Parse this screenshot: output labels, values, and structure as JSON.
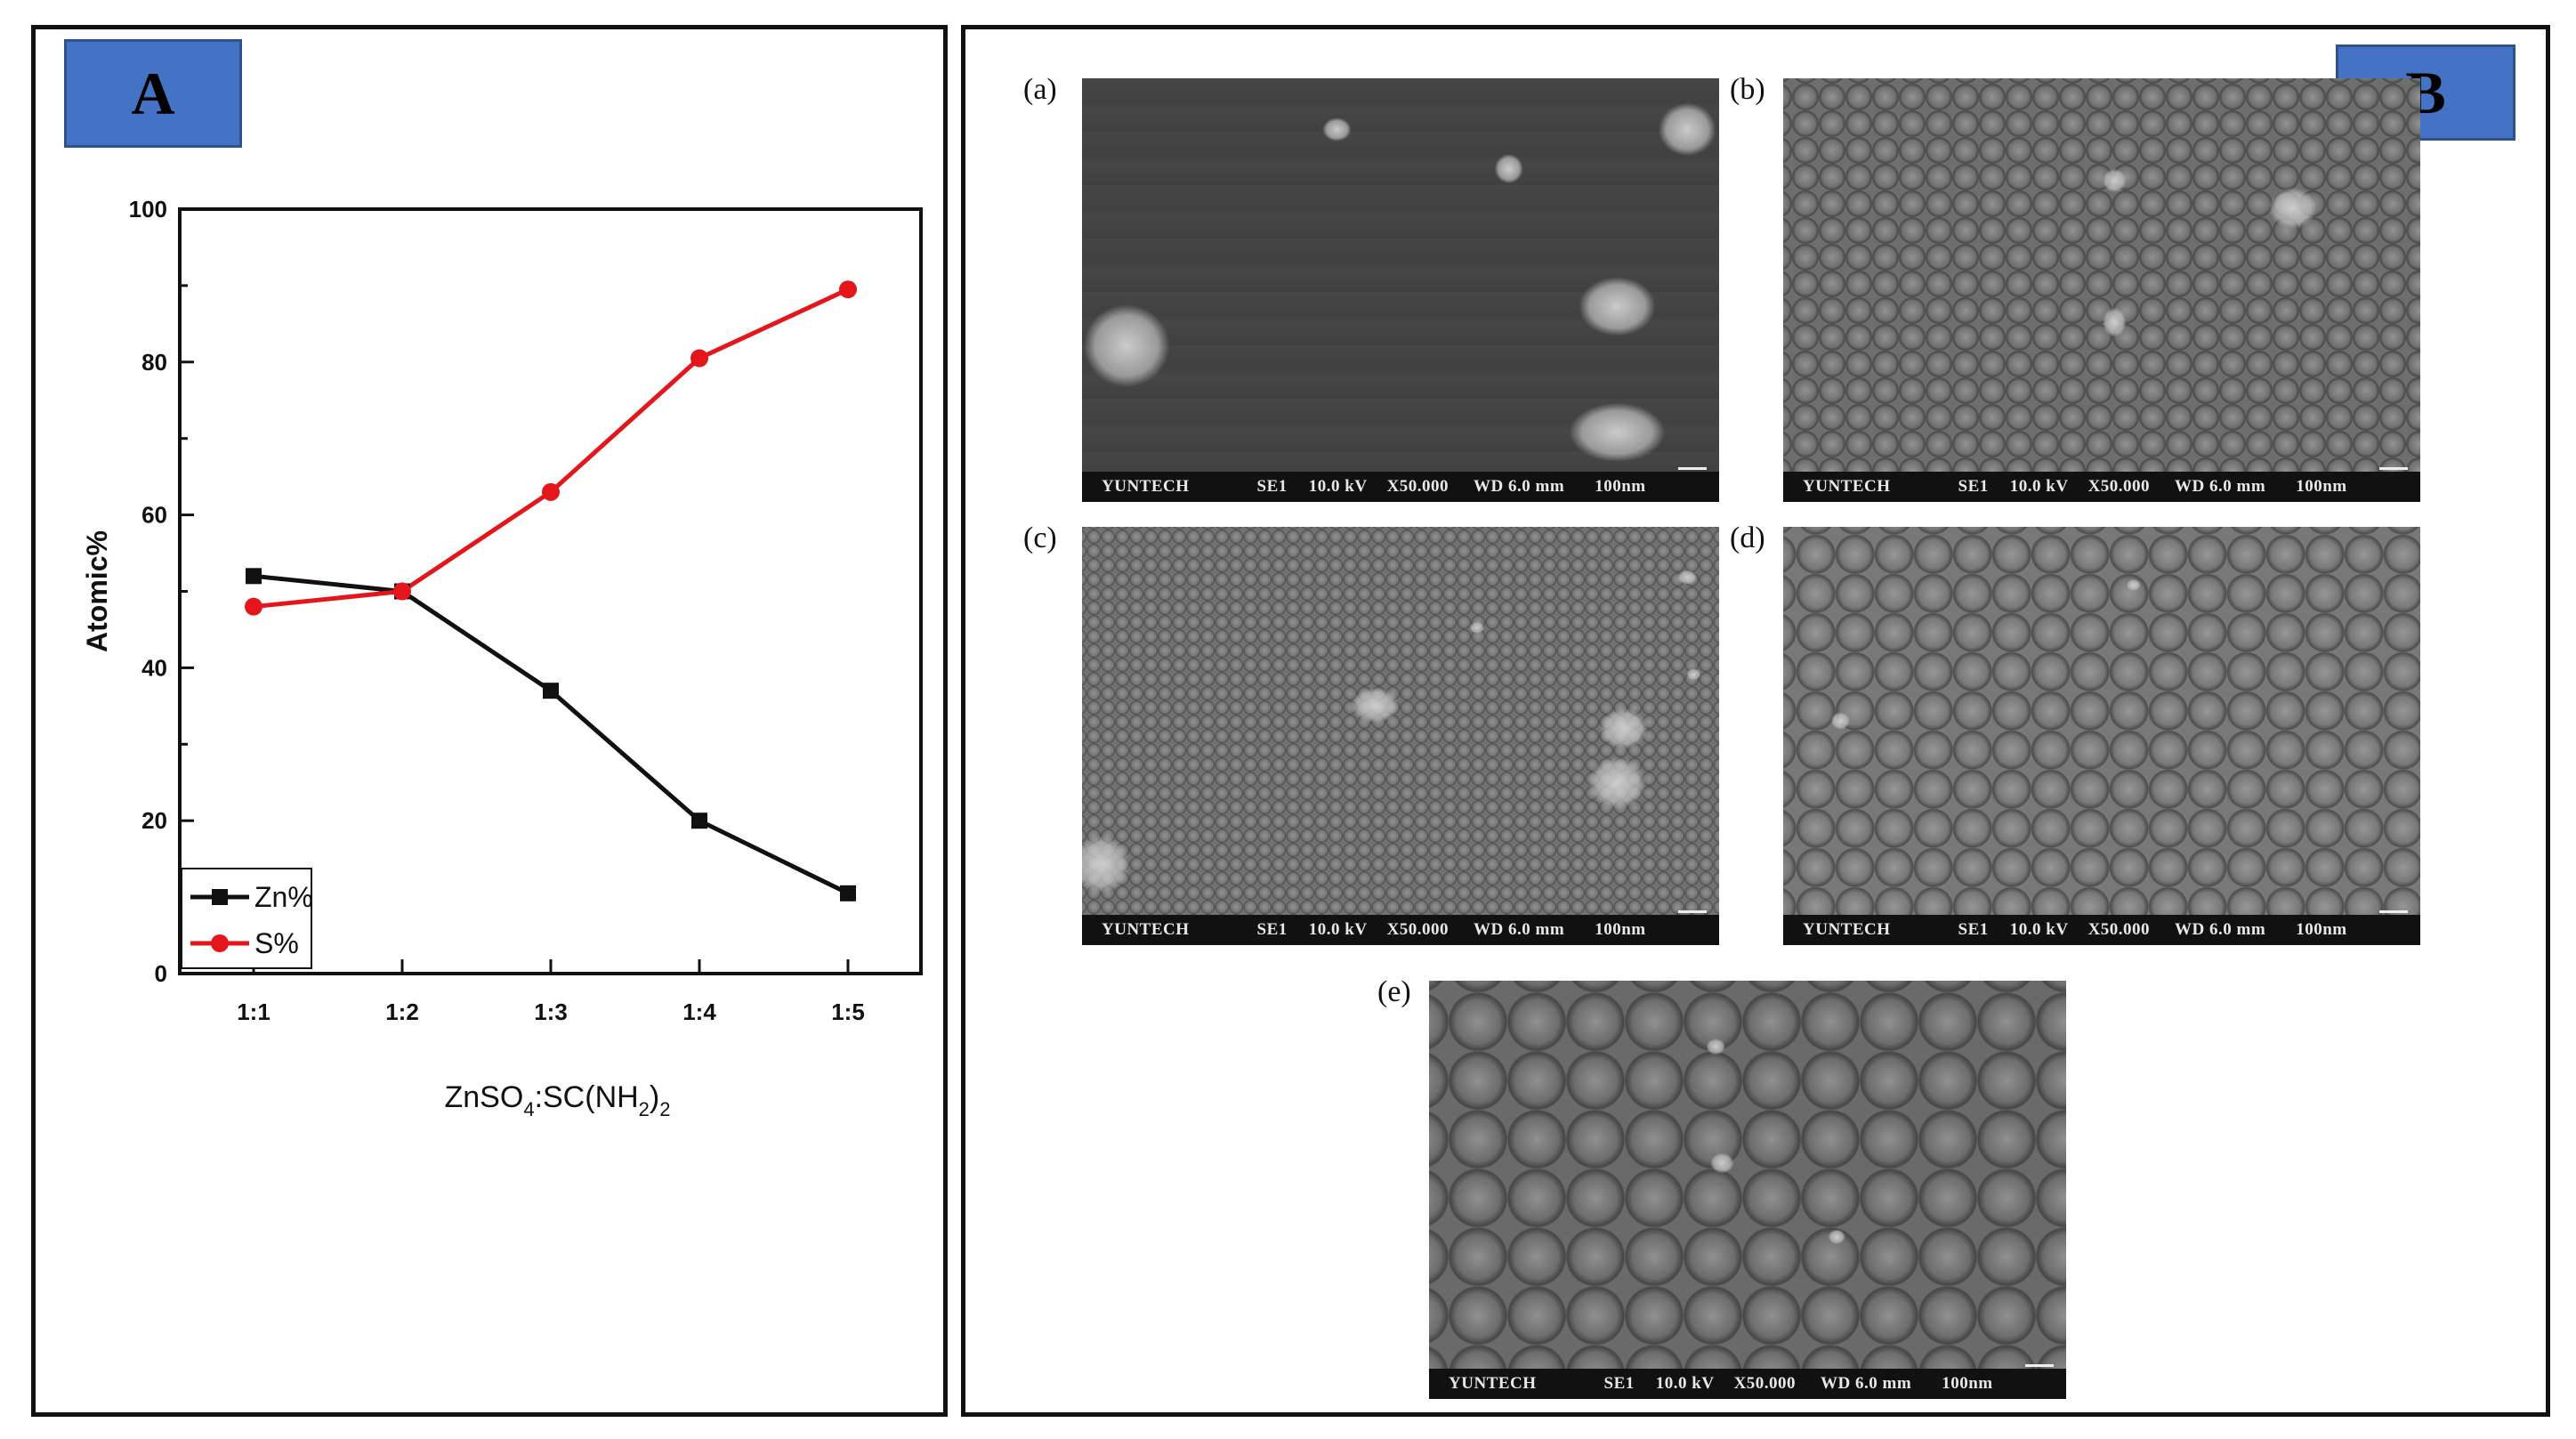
{
  "panel_a": {
    "tag": "A",
    "chart_data": {
      "type": "line",
      "categories": [
        "1:1",
        "1:2",
        "1:3",
        "1:4",
        "1:5"
      ],
      "series": [
        {
          "name": "Zn%",
          "color": "#111111",
          "marker": "square",
          "values": [
            52,
            50,
            37,
            20,
            10.5
          ]
        },
        {
          "name": "S%",
          "color": "#e4161b",
          "marker": "circle",
          "values": [
            48,
            50,
            63,
            80.5,
            89.5
          ]
        }
      ],
      "ylabel": "Atomic%",
      "xlabel_main": "ZnSO",
      "xlabel_sub1": "4",
      "xlabel_mid": ":SC(NH",
      "xlabel_sub2": "2",
      "xlabel_close": ")",
      "xlabel_sub3": "2",
      "ylim": [
        0,
        100
      ],
      "yticks": [
        "0",
        "20",
        "40",
        "60",
        "80",
        "100"
      ],
      "legend_position": "bottom-left",
      "grid": false
    }
  },
  "panel_b": {
    "tag": "B",
    "images": [
      {
        "label": "(a)",
        "tone": "#4a4a4a",
        "info": [
          "YUNTECH",
          "SE1",
          "10.0 kV",
          "X50.000",
          "WD 6.0 mm",
          "100nm"
        ]
      },
      {
        "label": "(b)",
        "tone": "#6e6e6e",
        "info": [
          "YUNTECH",
          "SE1",
          "10.0 kV",
          "X50.000",
          "WD 6.0 mm",
          "100nm"
        ]
      },
      {
        "label": "(c)",
        "tone": "#737373",
        "info": [
          "YUNTECH",
          "SE1",
          "10.0 kV",
          "X50.000",
          "WD 6.0 mm",
          "100nm"
        ]
      },
      {
        "label": "(d)",
        "tone": "#787878",
        "info": [
          "YUNTECH",
          "SE1",
          "10.0 kV",
          "X50.000",
          "WD 6.0 mm",
          "100nm"
        ]
      },
      {
        "label": "(e)",
        "tone": "#6a6a6a",
        "info": [
          "YUNTECH",
          "SE1",
          "10.0 kV",
          "X50.000",
          "WD 6.0 mm",
          "100nm"
        ]
      }
    ]
  }
}
